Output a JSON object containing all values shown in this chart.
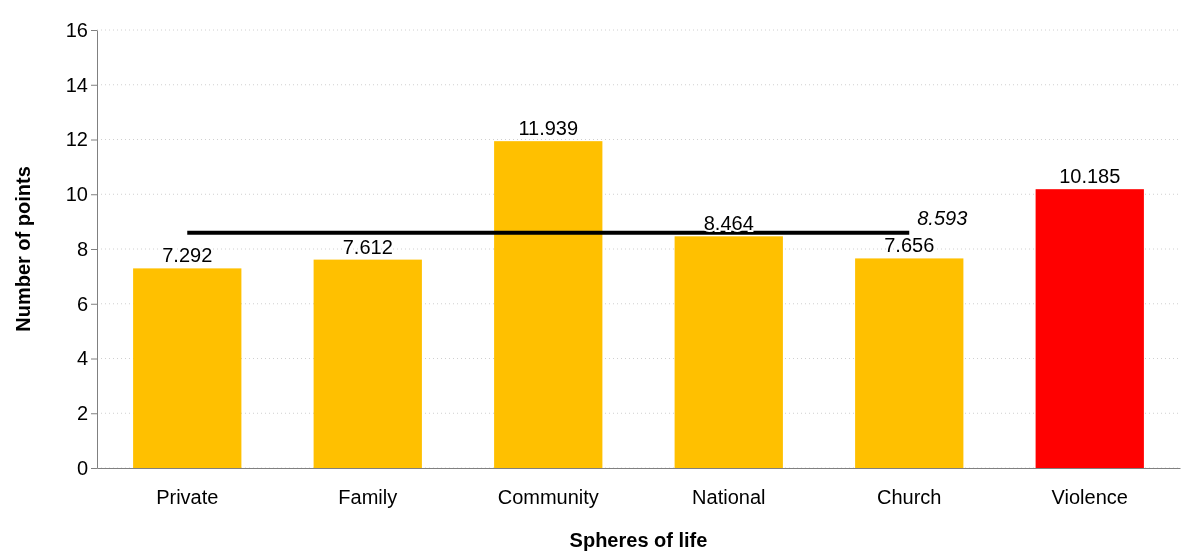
{
  "chart_data": {
    "type": "bar",
    "xlabel": "Spheres of life",
    "ylabel": "Number of points",
    "categories": [
      "Private",
      "Family",
      "Community",
      "National",
      "Church",
      "Violence"
    ],
    "series": [
      {
        "colors": [
          "#ffc000",
          "#ffc000",
          "#ffc000",
          "#ffc000",
          "#ffc000",
          "#ff0000"
        ],
        "values": [
          7.292,
          7.612,
          11.939,
          8.464,
          7.656,
          10.185
        ],
        "value_labels": [
          "7.292",
          "7.612",
          "11.939",
          "8.464",
          "7.656",
          "10.185"
        ]
      },
      {
        "type": "line",
        "color": "#000000",
        "values": [
          8.593,
          8.593,
          8.593,
          8.593,
          8.593,
          null
        ],
        "value_labels": [
          null,
          null,
          null,
          null,
          "8.593",
          null
        ]
      }
    ],
    "ylim": [
      0,
      16
    ],
    "yticks": [
      0,
      2,
      4,
      6,
      8,
      10,
      12,
      14,
      16
    ],
    "grid": "y",
    "marker": "none",
    "line_style": "solid"
  }
}
